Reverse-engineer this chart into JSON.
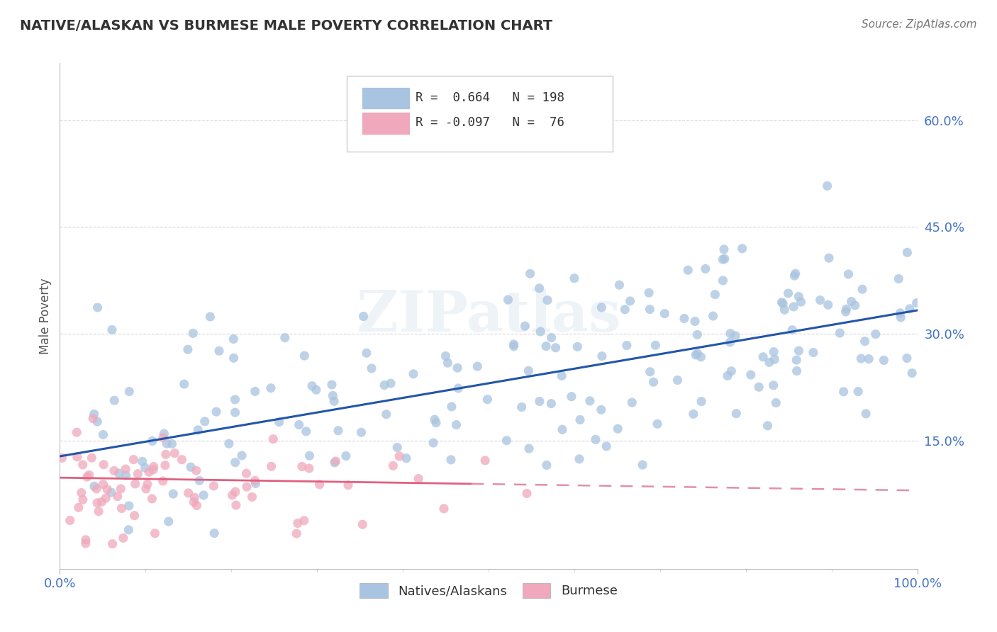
{
  "title": "NATIVE/ALASKAN VS BURMESE MALE POVERTY CORRELATION CHART",
  "source_text": "Source: ZipAtlas.com",
  "ylabel": "Male Poverty",
  "xlim": [
    0,
    1.0
  ],
  "ylim": [
    -0.03,
    0.68
  ],
  "watermark_text": "ZIPatlas",
  "blue_scatter_color": "#a8c4e0",
  "pink_scatter_color": "#f0a8bc",
  "blue_line_color": "#2255aa",
  "pink_line_solid_color": "#e06080",
  "pink_line_dash_color": "#e090a8",
  "legend_R_blue": "0.664",
  "legend_N_blue": "198",
  "legend_R_pink": "-0.097",
  "legend_N_pink": "76",
  "blue_N": 198,
  "pink_N": 76,
  "background_color": "#ffffff",
  "grid_color": "#cccccc",
  "tick_color": "#4472c4",
  "ylabel_color": "#555555",
  "title_color": "#333333",
  "source_color": "#777777"
}
